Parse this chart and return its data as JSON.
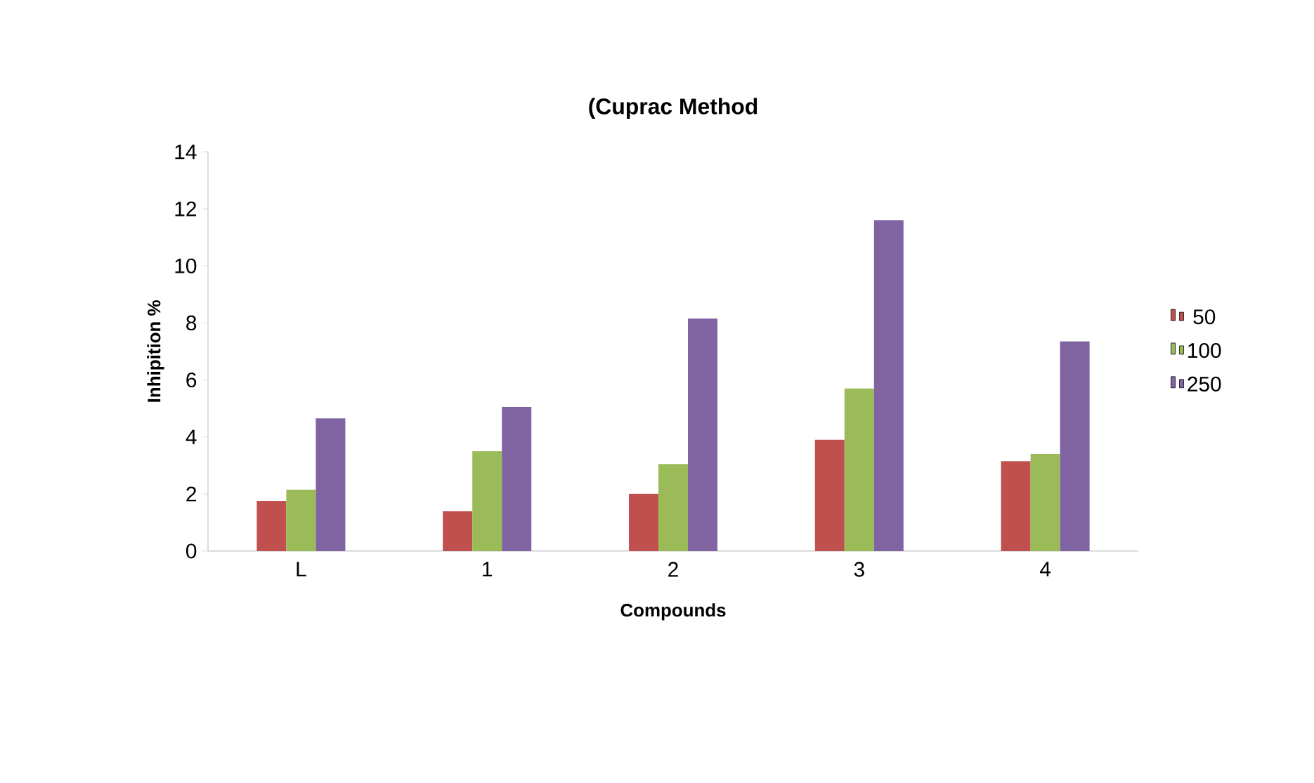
{
  "chart_data": {
    "type": "bar",
    "title": "(Cuprac Method",
    "xlabel": "Compounds",
    "ylabel": "Inhipition %",
    "categories": [
      "L",
      "1",
      "2",
      "3",
      "4"
    ],
    "series": [
      {
        "name": "50",
        "color": "#c0504d",
        "values": [
          1.75,
          1.4,
          2.0,
          3.9,
          3.15
        ]
      },
      {
        "name": "100",
        "color": "#9bbb59",
        "values": [
          2.15,
          3.5,
          3.05,
          5.7,
          3.4
        ]
      },
      {
        "name": "250",
        "color": "#8064a2",
        "values": [
          4.65,
          5.05,
          8.15,
          11.6,
          7.35
        ]
      }
    ],
    "ylim": [
      0,
      14
    ],
    "yticks": [
      0,
      2,
      4,
      6,
      8,
      10,
      12,
      14
    ],
    "grid": false,
    "legend": "right"
  }
}
